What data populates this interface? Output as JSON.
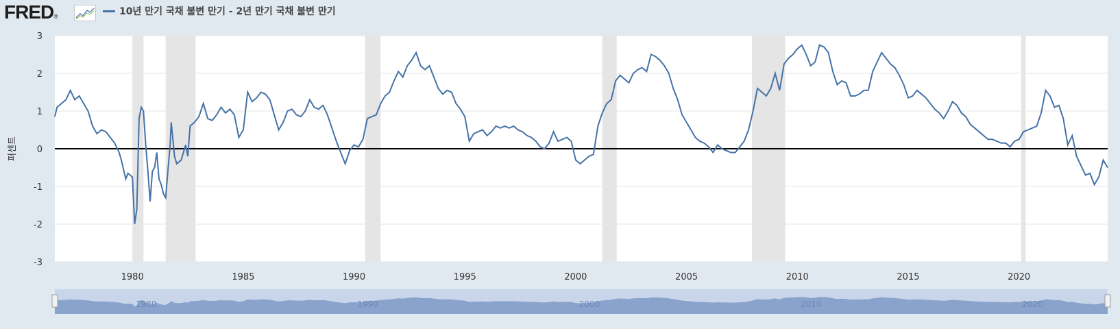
{
  "header": {
    "logo_text": "FRED",
    "logo_reg": "®",
    "legend_label": "10년 만기 국채 불변 만기 - 2년 만기 국채 불변 만기"
  },
  "colors": {
    "series": "#4572a7",
    "recession": "#e5e5e5",
    "zero": "#000000",
    "navigator": "#8aa3cd"
  },
  "chart_data": {
    "type": "line",
    "ylabel": "퍼센트",
    "xlabel": "",
    "ylim": [
      -3,
      3
    ],
    "xlim": [
      1976.5,
      2024.0
    ],
    "y_ticks": [
      -3,
      -2,
      -1,
      0,
      1,
      2,
      3
    ],
    "y_tick_labels": [
      "-3",
      "-2",
      "-1",
      "0",
      "1",
      "2",
      "3"
    ],
    "x_ticks": [
      1980,
      1985,
      1990,
      1995,
      2000,
      2005,
      2010,
      2015,
      2020
    ],
    "x_tick_labels": [
      "1980",
      "1985",
      "1990",
      "1995",
      "2000",
      "2005",
      "2010",
      "2015",
      "2020"
    ],
    "zero_line": 0,
    "recessions": [
      [
        1980.0,
        1980.5
      ],
      [
        1981.5,
        1982.85
      ],
      [
        1990.5,
        1991.2
      ],
      [
        2001.2,
        2001.85
      ],
      [
        2007.95,
        2009.45
      ],
      [
        2020.1,
        2020.3
      ]
    ],
    "navigator_labels": [
      "1980",
      "1990",
      "2000",
      "2010",
      "2020"
    ],
    "series": [
      {
        "name": "10년 만기 국채 불변 만기 - 2년 만기 국채 불변 만기",
        "points": [
          [
            1976.5,
            0.85
          ],
          [
            1976.6,
            1.1
          ],
          [
            1976.8,
            1.2
          ],
          [
            1977.0,
            1.3
          ],
          [
            1977.2,
            1.55
          ],
          [
            1977.4,
            1.3
          ],
          [
            1977.6,
            1.4
          ],
          [
            1977.8,
            1.2
          ],
          [
            1978.0,
            1.0
          ],
          [
            1978.2,
            0.6
          ],
          [
            1978.4,
            0.4
          ],
          [
            1978.6,
            0.5
          ],
          [
            1978.8,
            0.45
          ],
          [
            1979.0,
            0.3
          ],
          [
            1979.2,
            0.15
          ],
          [
            1979.4,
            -0.1
          ],
          [
            1979.5,
            -0.3
          ],
          [
            1979.6,
            -0.55
          ],
          [
            1979.7,
            -0.8
          ],
          [
            1979.8,
            -0.65
          ],
          [
            1980.0,
            -0.75
          ],
          [
            1980.1,
            -2.0
          ],
          [
            1980.2,
            -1.6
          ],
          [
            1980.3,
            0.8
          ],
          [
            1980.4,
            1.1
          ],
          [
            1980.5,
            1.0
          ],
          [
            1980.6,
            0.1
          ],
          [
            1980.7,
            -0.6
          ],
          [
            1980.8,
            -1.4
          ],
          [
            1980.9,
            -0.6
          ],
          [
            1981.0,
            -0.5
          ],
          [
            1981.1,
            -0.1
          ],
          [
            1981.2,
            -0.8
          ],
          [
            1981.3,
            -0.95
          ],
          [
            1981.4,
            -1.2
          ],
          [
            1981.5,
            -1.3
          ],
          [
            1981.6,
            -0.6
          ],
          [
            1981.7,
            0.1
          ],
          [
            1981.75,
            0.7
          ],
          [
            1981.9,
            -0.2
          ],
          [
            1982.0,
            -0.4
          ],
          [
            1982.2,
            -0.3
          ],
          [
            1982.4,
            0.1
          ],
          [
            1982.5,
            -0.2
          ],
          [
            1982.6,
            0.6
          ],
          [
            1982.8,
            0.7
          ],
          [
            1983.0,
            0.85
          ],
          [
            1983.2,
            1.2
          ],
          [
            1983.4,
            0.8
          ],
          [
            1983.6,
            0.75
          ],
          [
            1983.8,
            0.9
          ],
          [
            1984.0,
            1.1
          ],
          [
            1984.2,
            0.95
          ],
          [
            1984.4,
            1.05
          ],
          [
            1984.6,
            0.9
          ],
          [
            1984.8,
            0.3
          ],
          [
            1985.0,
            0.5
          ],
          [
            1985.2,
            1.5
          ],
          [
            1985.4,
            1.25
          ],
          [
            1985.6,
            1.35
          ],
          [
            1985.8,
            1.5
          ],
          [
            1986.0,
            1.45
          ],
          [
            1986.2,
            1.3
          ],
          [
            1986.4,
            0.9
          ],
          [
            1986.6,
            0.5
          ],
          [
            1986.8,
            0.7
          ],
          [
            1987.0,
            1.0
          ],
          [
            1987.2,
            1.05
          ],
          [
            1987.4,
            0.9
          ],
          [
            1987.6,
            0.85
          ],
          [
            1987.8,
            1.0
          ],
          [
            1988.0,
            1.3
          ],
          [
            1988.2,
            1.1
          ],
          [
            1988.4,
            1.05
          ],
          [
            1988.6,
            1.15
          ],
          [
            1988.8,
            0.9
          ],
          [
            1989.0,
            0.55
          ],
          [
            1989.2,
            0.2
          ],
          [
            1989.4,
            -0.1
          ],
          [
            1989.6,
            -0.4
          ],
          [
            1989.8,
            -0.05
          ],
          [
            1990.0,
            0.1
          ],
          [
            1990.2,
            0.05
          ],
          [
            1990.4,
            0.25
          ],
          [
            1990.6,
            0.8
          ],
          [
            1990.8,
            0.85
          ],
          [
            1991.0,
            0.9
          ],
          [
            1991.2,
            1.2
          ],
          [
            1991.4,
            1.4
          ],
          [
            1991.6,
            1.5
          ],
          [
            1991.8,
            1.8
          ],
          [
            1992.0,
            2.05
          ],
          [
            1992.2,
            1.9
          ],
          [
            1992.4,
            2.2
          ],
          [
            1992.6,
            2.35
          ],
          [
            1992.8,
            2.55
          ],
          [
            1993.0,
            2.2
          ],
          [
            1993.2,
            2.1
          ],
          [
            1993.4,
            2.2
          ],
          [
            1993.6,
            1.9
          ],
          [
            1993.8,
            1.6
          ],
          [
            1994.0,
            1.45
          ],
          [
            1994.2,
            1.55
          ],
          [
            1994.4,
            1.5
          ],
          [
            1994.6,
            1.2
          ],
          [
            1994.8,
            1.05
          ],
          [
            1995.0,
            0.85
          ],
          [
            1995.2,
            0.2
          ],
          [
            1995.4,
            0.4
          ],
          [
            1995.6,
            0.45
          ],
          [
            1995.8,
            0.5
          ],
          [
            1996.0,
            0.35
          ],
          [
            1996.2,
            0.45
          ],
          [
            1996.4,
            0.6
          ],
          [
            1996.6,
            0.55
          ],
          [
            1996.8,
            0.6
          ],
          [
            1997.0,
            0.55
          ],
          [
            1997.2,
            0.6
          ],
          [
            1997.4,
            0.5
          ],
          [
            1997.6,
            0.45
          ],
          [
            1997.8,
            0.35
          ],
          [
            1998.0,
            0.3
          ],
          [
            1998.2,
            0.2
          ],
          [
            1998.4,
            0.05
          ],
          [
            1998.6,
            0.0
          ],
          [
            1998.8,
            0.15
          ],
          [
            1999.0,
            0.45
          ],
          [
            1999.2,
            0.2
          ],
          [
            1999.4,
            0.25
          ],
          [
            1999.6,
            0.3
          ],
          [
            1999.8,
            0.2
          ],
          [
            2000.0,
            -0.3
          ],
          [
            2000.2,
            -0.4
          ],
          [
            2000.4,
            -0.3
          ],
          [
            2000.6,
            -0.2
          ],
          [
            2000.8,
            -0.15
          ],
          [
            2001.0,
            0.6
          ],
          [
            2001.2,
            0.95
          ],
          [
            2001.4,
            1.2
          ],
          [
            2001.6,
            1.3
          ],
          [
            2001.8,
            1.8
          ],
          [
            2002.0,
            1.95
          ],
          [
            2002.2,
            1.85
          ],
          [
            2002.4,
            1.75
          ],
          [
            2002.6,
            2.0
          ],
          [
            2002.8,
            2.1
          ],
          [
            2003.0,
            2.15
          ],
          [
            2003.2,
            2.05
          ],
          [
            2003.4,
            2.5
          ],
          [
            2003.6,
            2.45
          ],
          [
            2003.8,
            2.35
          ],
          [
            2004.0,
            2.2
          ],
          [
            2004.2,
            2.0
          ],
          [
            2004.4,
            1.6
          ],
          [
            2004.6,
            1.3
          ],
          [
            2004.8,
            0.9
          ],
          [
            2005.0,
            0.7
          ],
          [
            2005.2,
            0.5
          ],
          [
            2005.4,
            0.3
          ],
          [
            2005.6,
            0.2
          ],
          [
            2005.8,
            0.15
          ],
          [
            2006.0,
            0.05
          ],
          [
            2006.2,
            -0.1
          ],
          [
            2006.4,
            0.1
          ],
          [
            2006.6,
            0.0
          ],
          [
            2006.8,
            -0.05
          ],
          [
            2007.0,
            -0.1
          ],
          [
            2007.2,
            -0.1
          ],
          [
            2007.4,
            0.05
          ],
          [
            2007.6,
            0.2
          ],
          [
            2007.8,
            0.5
          ],
          [
            2008.0,
            1.0
          ],
          [
            2008.2,
            1.6
          ],
          [
            2008.4,
            1.5
          ],
          [
            2008.6,
            1.4
          ],
          [
            2008.8,
            1.6
          ],
          [
            2009.0,
            2.0
          ],
          [
            2009.2,
            1.55
          ],
          [
            2009.4,
            2.25
          ],
          [
            2009.6,
            2.4
          ],
          [
            2009.8,
            2.5
          ],
          [
            2010.0,
            2.65
          ],
          [
            2010.2,
            2.75
          ],
          [
            2010.4,
            2.5
          ],
          [
            2010.6,
            2.2
          ],
          [
            2010.8,
            2.3
          ],
          [
            2011.0,
            2.75
          ],
          [
            2011.2,
            2.7
          ],
          [
            2011.4,
            2.55
          ],
          [
            2011.6,
            2.05
          ],
          [
            2011.8,
            1.7
          ],
          [
            2012.0,
            1.8
          ],
          [
            2012.2,
            1.75
          ],
          [
            2012.4,
            1.4
          ],
          [
            2012.6,
            1.4
          ],
          [
            2012.8,
            1.45
          ],
          [
            2013.0,
            1.55
          ],
          [
            2013.2,
            1.55
          ],
          [
            2013.4,
            2.05
          ],
          [
            2013.6,
            2.3
          ],
          [
            2013.8,
            2.55
          ],
          [
            2014.0,
            2.4
          ],
          [
            2014.2,
            2.25
          ],
          [
            2014.4,
            2.15
          ],
          [
            2014.6,
            1.95
          ],
          [
            2014.8,
            1.7
          ],
          [
            2015.0,
            1.35
          ],
          [
            2015.2,
            1.4
          ],
          [
            2015.4,
            1.55
          ],
          [
            2015.6,
            1.45
          ],
          [
            2015.8,
            1.35
          ],
          [
            2016.0,
            1.2
          ],
          [
            2016.2,
            1.05
          ],
          [
            2016.4,
            0.95
          ],
          [
            2016.6,
            0.8
          ],
          [
            2016.8,
            1.0
          ],
          [
            2017.0,
            1.25
          ],
          [
            2017.2,
            1.15
          ],
          [
            2017.4,
            0.95
          ],
          [
            2017.6,
            0.85
          ],
          [
            2017.8,
            0.65
          ],
          [
            2018.0,
            0.55
          ],
          [
            2018.2,
            0.45
          ],
          [
            2018.4,
            0.35
          ],
          [
            2018.6,
            0.25
          ],
          [
            2018.8,
            0.25
          ],
          [
            2019.0,
            0.2
          ],
          [
            2019.2,
            0.15
          ],
          [
            2019.4,
            0.15
          ],
          [
            2019.6,
            0.05
          ],
          [
            2019.8,
            0.2
          ],
          [
            2020.0,
            0.25
          ],
          [
            2020.2,
            0.45
          ],
          [
            2020.4,
            0.5
          ],
          [
            2020.6,
            0.55
          ],
          [
            2020.8,
            0.6
          ],
          [
            2021.0,
            0.95
          ],
          [
            2021.2,
            1.55
          ],
          [
            2021.4,
            1.4
          ],
          [
            2021.6,
            1.1
          ],
          [
            2021.8,
            1.15
          ],
          [
            2022.0,
            0.8
          ],
          [
            2022.2,
            0.1
          ],
          [
            2022.4,
            0.35
          ],
          [
            2022.6,
            -0.2
          ],
          [
            2022.8,
            -0.45
          ],
          [
            2023.0,
            -0.7
          ],
          [
            2023.2,
            -0.65
          ],
          [
            2023.4,
            -0.95
          ],
          [
            2023.6,
            -0.75
          ],
          [
            2023.8,
            -0.3
          ],
          [
            2024.0,
            -0.5
          ]
        ]
      }
    ]
  }
}
